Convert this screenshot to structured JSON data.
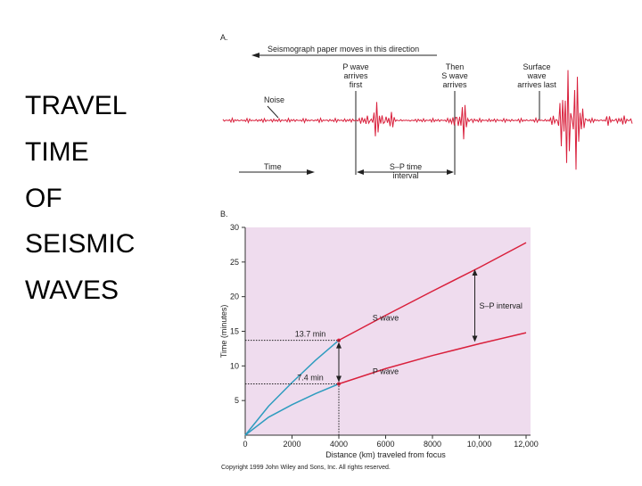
{
  "slide": {
    "title_lines": [
      "TRAVEL",
      "TIME",
      "OF",
      "SEISMIC",
      "WAVES"
    ]
  },
  "figure_a": {
    "label": "A.",
    "arrow_text": "Seismograph paper moves in this direction",
    "p_wave": [
      "P wave",
      "arrives",
      "first"
    ],
    "s_wave": [
      "Then",
      "S wave",
      "arrives"
    ],
    "surface_wave": [
      "Surface",
      "wave",
      "arrives last"
    ],
    "noise": "Noise",
    "time": "Time",
    "sp_interval": [
      "S–P time",
      "interval"
    ]
  },
  "chart_data": {
    "type": "line",
    "label": "B.",
    "x_label": "Distance (km) traveled from focus",
    "y_label": "Time (minutes)",
    "xlim": [
      0,
      12000
    ],
    "ylim": [
      0,
      30
    ],
    "xticks": [
      0,
      2000,
      4000,
      6000,
      8000,
      {
        "value": 10000,
        "label": "10,000"
      },
      {
        "value": 12000,
        "label": "12,000"
      }
    ],
    "yticks": [
      5,
      10,
      15,
      20,
      25,
      30
    ],
    "background": "#efdcee",
    "series": [
      {
        "color": "#2e9cbf",
        "x": [
          0,
          1000,
          2000,
          3000,
          4000
        ],
        "values": [
          0,
          4.2,
          7.6,
          10.8,
          13.7
        ]
      },
      {
        "name": "S wave",
        "color": "#d9203c",
        "x": [
          4000,
          6000,
          8000,
          10000,
          12000
        ],
        "values": [
          13.7,
          17.3,
          20.8,
          24.2,
          27.8
        ]
      },
      {
        "color": "#2e9cbf",
        "x": [
          0,
          1000,
          2000,
          3000,
          4000
        ],
        "values": [
          0,
          2.6,
          4.4,
          6.0,
          7.4
        ]
      },
      {
        "name": "P wave",
        "color": "#d9203c",
        "x": [
          4000,
          6000,
          8000,
          10000,
          12000
        ],
        "values": [
          7.4,
          9.6,
          11.5,
          13.2,
          14.8
        ]
      }
    ],
    "annotations": [
      {
        "x": 4000,
        "value": 13.7,
        "label": "13.7 min"
      },
      {
        "x": 4000,
        "value": 7.4,
        "label": "7.4 min"
      },
      {
        "text": "S–P interval"
      }
    ],
    "credit": "Copyright 1999 John Wiley and Sons, Inc. All rights reserved."
  }
}
